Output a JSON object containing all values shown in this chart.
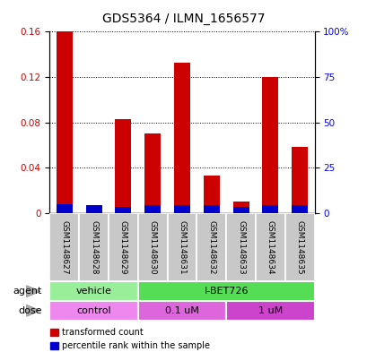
{
  "title": "GDS5364 / ILMN_1656577",
  "samples": [
    "GSM1148627",
    "GSM1148628",
    "GSM1148629",
    "GSM1148630",
    "GSM1148631",
    "GSM1148632",
    "GSM1148633",
    "GSM1148634",
    "GSM1148635"
  ],
  "red_values": [
    0.16,
    0.007,
    0.083,
    0.07,
    0.133,
    0.033,
    0.01,
    0.12,
    0.058
  ],
  "blue_percentiles": [
    5.0,
    4.5,
    3.5,
    4.5,
    4.5,
    4.5,
    3.5,
    4.5,
    4.5
  ],
  "ylim_left": [
    0,
    0.16
  ],
  "ylim_right": [
    0,
    100
  ],
  "yticks_left": [
    0,
    0.04,
    0.08,
    0.12,
    0.16
  ],
  "yticks_right": [
    0,
    25,
    50,
    75,
    100
  ],
  "ytick_labels_right": [
    "0",
    "25",
    "50",
    "75",
    "100%"
  ],
  "agent_groups": [
    {
      "label": "vehicle",
      "start": 0,
      "end": 3,
      "color": "#99EE99"
    },
    {
      "label": "I-BET726",
      "start": 3,
      "end": 9,
      "color": "#55DD55"
    }
  ],
  "dose_groups": [
    {
      "label": "control",
      "start": 0,
      "end": 3,
      "color": "#EE88EE"
    },
    {
      "label": "0.1 uM",
      "start": 3,
      "end": 6,
      "color": "#DD66DD"
    },
    {
      "label": "1 uM",
      "start": 6,
      "end": 9,
      "color": "#CC44CC"
    }
  ],
  "bar_width": 0.55,
  "red_color": "#CC0000",
  "blue_color": "#0000CC",
  "bar_bg_color": "#C8C8C8",
  "legend_red": "transformed count",
  "legend_blue": "percentile rank within the sample",
  "agent_label": "agent",
  "dose_label": "dose",
  "title_fontsize": 10,
  "tick_fontsize": 7.5,
  "label_fontsize": 8,
  "sample_fontsize": 6.5
}
